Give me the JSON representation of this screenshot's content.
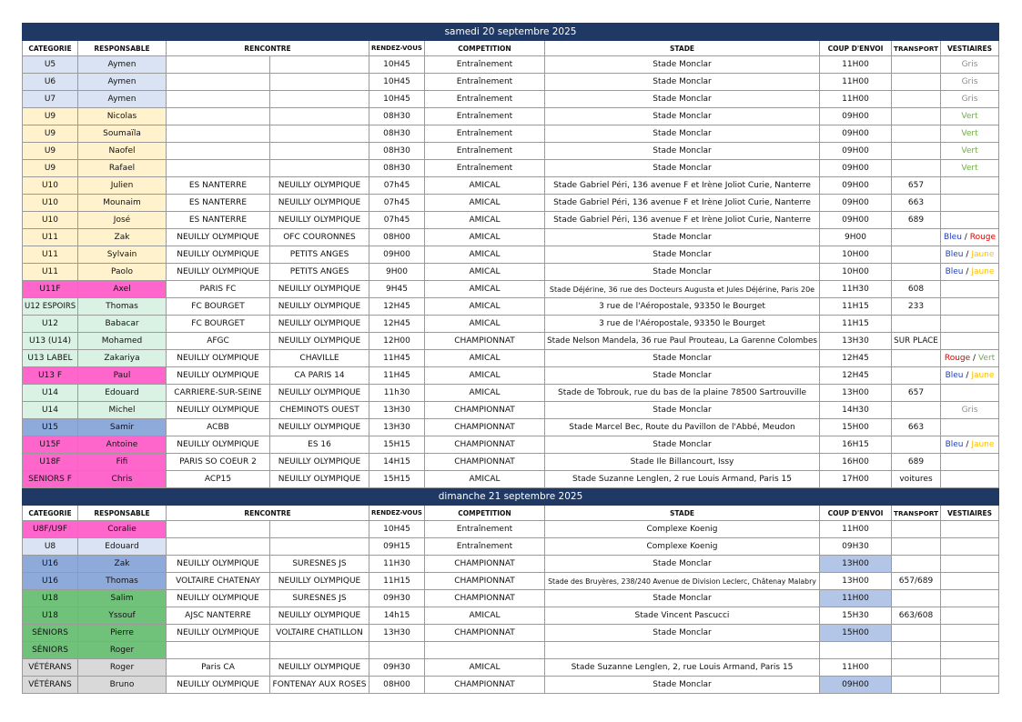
{
  "sections": [
    {
      "title": "samedi 20 septembre 2025",
      "header": [
        "CATEGORIE",
        "RESPONSABLE",
        "RENCONTRE",
        "RENDEZ-VOUS",
        "COMPETITION",
        "STADE",
        "COUP D'ENVOI",
        "TRANSPORT",
        "VESTIAIRES"
      ],
      "rows": [
        {
          "fill": "#dae3f3",
          "cells": [
            "U5",
            "Aymen",
            null,
            null,
            "10H45",
            "Entraînement",
            "Stade Monclar",
            "11H00",
            null
          ],
          "vestiaires": [
            {
              "text": "Gris",
              "color": "#8c8c8c"
            }
          ]
        },
        {
          "fill": "#dae3f3",
          "cells": [
            "U6",
            "Aymen",
            null,
            null,
            "10H45",
            "Entraînement",
            "Stade Monclar",
            "11H00",
            null
          ],
          "vestiaires": [
            {
              "text": "Gris",
              "color": "#8c8c8c"
            }
          ]
        },
        {
          "fill": "#dae3f3",
          "cells": [
            "U7",
            "Aymen",
            null,
            null,
            "10H45",
            "Entraînement",
            "Stade Monclar",
            "11H00",
            null
          ],
          "vestiaires": [
            {
              "text": "Gris",
              "color": "#8c8c8c"
            }
          ]
        },
        {
          "fill": "#fff2cc",
          "cells": [
            "U9",
            "Nicolas",
            null,
            null,
            "08H30",
            "Entraînement",
            "Stade Monclar",
            "09H00",
            null
          ],
          "vestiaires": [
            {
              "text": "Vert",
              "color": "#70ad47"
            }
          ]
        },
        {
          "fill": "#fff2cc",
          "cells": [
            "U9",
            "Soumaïla",
            null,
            null,
            "08H30",
            "Entraînement",
            "Stade Monclar",
            "09H00",
            null
          ],
          "vestiaires": [
            {
              "text": "Vert",
              "color": "#70ad47"
            }
          ]
        },
        {
          "fill": "#fff2cc",
          "cells": [
            "U9",
            "Naofel",
            null,
            null,
            "08H30",
            "Entraînement",
            "Stade Monclar",
            "09H00",
            null
          ],
          "vestiaires": [
            {
              "text": "Vert",
              "color": "#70ad47"
            }
          ]
        },
        {
          "fill": "#fff2cc",
          "cells": [
            "U9",
            "Rafael",
            null,
            null,
            "08H30",
            "Entraînement",
            "Stade Monclar",
            "09H00",
            null
          ],
          "vestiaires": [
            {
              "text": "Vert",
              "color": "#70ad47"
            }
          ]
        },
        {
          "fill": "#fff2cc",
          "cells": [
            "U10",
            "Julien",
            "ES NANTERRE",
            "NEUILLY OLYMPIQUE",
            "07h45",
            "AMICAL",
            "Stade Gabriel Péri, 136 avenue F et Irène Joliot Curie, Nanterre",
            "09H00",
            "657"
          ]
        },
        {
          "fill": "#fff2cc",
          "cells": [
            "U10",
            "Mounaim",
            "ES NANTERRE",
            "NEUILLY OLYMPIQUE",
            "07h45",
            "AMICAL",
            "Stade Gabriel Péri, 136 avenue F et Irène Joliot Curie, Nanterre",
            "09H00",
            "663"
          ]
        },
        {
          "fill": "#fff2cc",
          "cells": [
            "U10",
            "José",
            "ES NANTERRE",
            "NEUILLY OLYMPIQUE",
            "07h45",
            "AMICAL",
            "Stade Gabriel Péri, 136 avenue F et Irène Joliot Curie, Nanterre",
            "09H00",
            "689"
          ]
        },
        {
          "fill": "#fff2cc",
          "cells": [
            "U11",
            "Zak",
            "NEUILLY OLYMPIQUE",
            "OFC COURONNES",
            "08H00",
            "AMICAL",
            "Stade Monclar",
            "9H00",
            null
          ],
          "vestiaires": [
            {
              "text": "Bleu",
              "color": "#1f3fbf"
            },
            {
              "text": "/"
            },
            {
              "text": "Rouge",
              "color": "#e00000"
            }
          ]
        },
        {
          "fill": "#fff2cc",
          "cells": [
            "U11",
            "Sylvain",
            "NEUILLY OLYMPIQUE",
            "PETITS ANGES",
            "09H00",
            "AMICAL",
            "Stade Monclar",
            "10H00",
            null
          ],
          "vestiaires": [
            {
              "text": "Bleu",
              "color": "#1f3fbf"
            },
            {
              "text": "/"
            },
            {
              "text": "Jaune",
              "color": "#ffc000"
            }
          ]
        },
        {
          "fill": "#fff2cc",
          "cells": [
            "U11",
            "Paolo",
            "NEUILLY OLYMPIQUE",
            "PETITS ANGES",
            "9H00",
            "AMICAL",
            "Stade Monclar",
            "10H00",
            null
          ],
          "vestiaires": [
            {
              "text": "Bleu",
              "color": "#1f3fbf"
            },
            {
              "text": "/"
            },
            {
              "text": "Jaune",
              "color": "#ffc000"
            }
          ]
        },
        {
          "fill": "#ff66cc",
          "cells": [
            "U11F",
            "Axel",
            "PARIS FC",
            "NEUILLY OLYMPIQUE",
            "9H45",
            "AMICAL",
            "Stade Déjérine, 36 rue des Docteurs Augusta et Jules Déjérine, Paris 20e",
            "11H30",
            "608"
          ]
        },
        {
          "fill": "#d9f2e3",
          "cells": [
            "U12 ESPOIRS",
            "Thomas",
            "FC BOURGET",
            "NEUILLY OLYMPIQUE",
            "12H45",
            "AMICAL",
            "3 rue de l'Aéropostale, 93350 le Bourget",
            "11H15",
            "233"
          ]
        },
        {
          "fill": "#d9f2e3",
          "cells": [
            "U12",
            "Babacar",
            "FC BOURGET",
            "NEUILLY OLYMPIQUE",
            "12H45",
            "AMICAL",
            "3 rue de l'Aéropostale, 93350 le Bourget",
            "11H15",
            null
          ]
        },
        {
          "fill": "#d9f2e3",
          "cells": [
            "U13 (U14)",
            "Mohamed",
            "AFGC",
            "NEUILLY OLYMPIQUE",
            "12H00",
            "CHAMPIONNAT",
            "Stade Nelson Mandela, 36 rue Paul Prouteau, La Garenne Colombes",
            "13H30",
            "SUR PLACE"
          ]
        },
        {
          "fill": "#d9f2e3",
          "cells": [
            "U13 LABEL",
            "Zakariya",
            "NEUILLY OLYMPIQUE",
            "CHAVILLE",
            "11H45",
            "AMICAL",
            "Stade Monclar",
            "12H45",
            null
          ],
          "vestiaires": [
            {
              "text": "Rouge",
              "color": "#e00000"
            },
            {
              "text": "/"
            },
            {
              "text": "Vert",
              "color": "#70ad47"
            }
          ]
        },
        {
          "fill": "#ff66cc",
          "cells": [
            "U13 F",
            "Paul",
            "NEUILLY OLYMPIQUE",
            "CA PARIS 14",
            "11H45",
            "AMICAL",
            "Stade Monclar",
            "12H45",
            null
          ],
          "vestiaires": [
            {
              "text": "Bleu",
              "color": "#1f3fbf"
            },
            {
              "text": "/"
            },
            {
              "text": "Jaune",
              "color": "#ffc000"
            }
          ]
        },
        {
          "fill": "#d9f2e3",
          "cells": [
            "U14",
            "Edouard",
            "CARRIERE-SUR-SEINE",
            "NEUILLY OLYMPIQUE",
            "11h30",
            "AMICAL",
            "Stade de Tobrouk, rue du bas de la plaine 78500 Sartrouville",
            "13H00",
            "657"
          ]
        },
        {
          "fill": "#d9f2e3",
          "cells": [
            "U14",
            "Michel",
            "NEUILLY OLYMPIQUE",
            "CHEMINOTS OUEST",
            "13H30",
            "CHAMPIONNAT",
            "Stade Monclar",
            "14H30",
            null
          ],
          "vestiaires": [
            {
              "text": "Gris",
              "color": "#8c8c8c"
            }
          ]
        },
        {
          "fill": "#8eaadb",
          "cells": [
            "U15",
            "Samir",
            "ACBB",
            "NEUILLY OLYMPIQUE",
            "13H30",
            "CHAMPIONNAT",
            "Stade Marcel Bec,  Route du Pavillon de l'Abbé, Meudon",
            "15H00",
            "663"
          ]
        },
        {
          "fill": "#ff66cc",
          "cells": [
            "U15F",
            "Antoine",
            "NEUILLY OLYMPIQUE",
            "ES 16",
            "15H15",
            "CHAMPIONNAT",
            "Stade Monclar",
            "16H15",
            null
          ],
          "vestiaires": [
            {
              "text": "Bleu",
              "color": "#1f3fbf"
            },
            {
              "text": "/"
            },
            {
              "text": "Jaune",
              "color": "#ffc000"
            }
          ]
        },
        {
          "fill": "#ff66cc",
          "cells": [
            "U18F",
            "Fifi",
            "PARIS SO COEUR 2",
            "NEUILLY OLYMPIQUE",
            "14H15",
            "CHAMPIONNAT",
            "Stade Ile Billancourt, Issy",
            "16H00",
            "689"
          ]
        },
        {
          "fill": "#ff66cc",
          "cells": [
            "SENIORS F",
            "Chris",
            "ACP15",
            "NEUILLY OLYMPIQUE",
            "15H15",
            "AMICAL",
            "Stade Suzanne Lenglen, 2 rue Louis Armand, Paris 15",
            "17H00",
            "voitures"
          ]
        }
      ]
    },
    {
      "title": "dimanche 21 septembre 2025",
      "header": [
        "CATEGORIE",
        "RESPONSABLE",
        "RENCONTRE",
        "RENDEZ-VOUS",
        "COMPETITION",
        "STADE",
        "COUP D'ENVOI",
        "TRANSPORT",
        "VESTIAIRES"
      ],
      "rows": [
        {
          "fill": "#ff66cc",
          "cells": [
            "U8F/U9F",
            "Coralie",
            null,
            null,
            "10H45",
            "Entraînement",
            "Complexe Koenig",
            "11H00",
            null
          ]
        },
        {
          "fill": "#dae3f3",
          "cells": [
            "U8",
            "Edouard",
            null,
            null,
            "09H15",
            "Entraînement",
            "Complexe Koenig",
            "09H30",
            null
          ]
        },
        {
          "fill": "#8eaadb",
          "kickoff_fill": "#b4c6e7",
          "cells": [
            "U16",
            "Zak",
            "NEUILLY OLYMPIQUE",
            "SURESNES JS",
            "11H30",
            "CHAMPIONNAT",
            "Stade Monclar",
            "13H00",
            null
          ]
        },
        {
          "fill": "#8eaadb",
          "cells": [
            "U16",
            "Thomas",
            "VOLTAIRE CHATENAY",
            "NEUILLY OLYMPIQUE",
            "11H15",
            "CHAMPIONNAT",
            "Stade des Bruyères,  238/240 Avenue de Division Leclerc, Châtenay Malabry",
            "13H00",
            "657/689"
          ]
        },
        {
          "fill": "#70c27a",
          "kickoff_fill": "#b4c6e7",
          "cells": [
            "U18",
            "Salim",
            "NEUILLY OLYMPIQUE",
            "SURESNES JS",
            "09H30",
            "CHAMPIONNAT",
            "Stade Monclar",
            "11H00",
            null
          ]
        },
        {
          "fill": "#70c27a",
          "cells": [
            "U18",
            "Yssouf",
            "AJSC NANTERRE",
            "NEUILLY OLYMPIQUE",
            "14h15",
            "AMICAL",
            "Stade Vincent Pascucci",
            "15H30",
            "663/608"
          ]
        },
        {
          "fill": "#70c27a",
          "kickoff_fill": "#b4c6e7",
          "cells": [
            "SÉNIORS",
            "Pierre",
            "NEUILLY OLYMPIQUE",
            "VOLTAIRE CHATILLON",
            "13H30",
            "CHAMPIONNAT",
            "Stade Monclar",
            "15H00",
            null
          ]
        },
        {
          "fill": "#70c27a",
          "cells": [
            "SÉNIORS",
            "Roger",
            null,
            null,
            null,
            null,
            null,
            null,
            null
          ]
        },
        {
          "fill": "#d9d9d9",
          "cells": [
            "VÉTÉRANS",
            "Roger",
            "Paris CA",
            "NEUILLY OLYMPIQUE",
            "09H30",
            "AMICAL",
            "Stade Suzanne Lenglen, 2, rue Louis Armand, Paris 15",
            "11H00",
            null
          ]
        },
        {
          "fill": "#d9d9d9",
          "kickoff_fill": "#b4c6e7",
          "cells": [
            "VÉTÉRANS",
            "Bruno",
            "NEUILLY OLYMPIQUE",
            "FONTENAY AUX ROSES",
            "08H00",
            "CHAMPIONNAT",
            "Stade Monclar",
            "09H00",
            null
          ]
        }
      ]
    }
  ]
}
